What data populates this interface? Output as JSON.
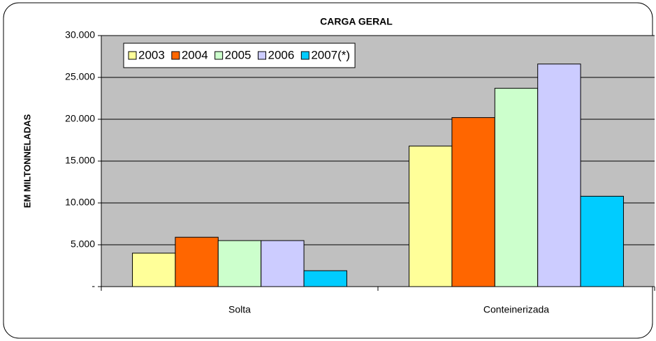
{
  "chart_data": {
    "type": "bar",
    "title": "CARGA GERAL",
    "y_label": "EM MILTONNELADAS",
    "categories": [
      "Solta",
      "Conteinerizada"
    ],
    "series": [
      {
        "name": "2003",
        "color": "#ffff99",
        "values": [
          4000,
          16800
        ]
      },
      {
        "name": "2004",
        "color": "#ff6600",
        "values": [
          5900,
          20200
        ]
      },
      {
        "name": "2005",
        "color": "#ccffcc",
        "values": [
          5500,
          23700
        ]
      },
      {
        "name": "2006",
        "color": "#ccccff",
        "values": [
          5500,
          26600
        ]
      },
      {
        "name": "2007(*)",
        "color": "#00ccff",
        "values": [
          1900,
          10800
        ]
      }
    ],
    "ylim": [
      0,
      30000
    ],
    "yticks": [
      {
        "value": 0,
        "label": "-"
      },
      {
        "value": 5000,
        "label": "5.000"
      },
      {
        "value": 10000,
        "label": "10.000"
      },
      {
        "value": 15000,
        "label": "15.000"
      },
      {
        "value": 20000,
        "label": "20.000"
      },
      {
        "value": 25000,
        "label": "25.000"
      },
      {
        "value": 30000,
        "label": "30.000"
      }
    ],
    "grid": true,
    "legend": "top-left"
  }
}
